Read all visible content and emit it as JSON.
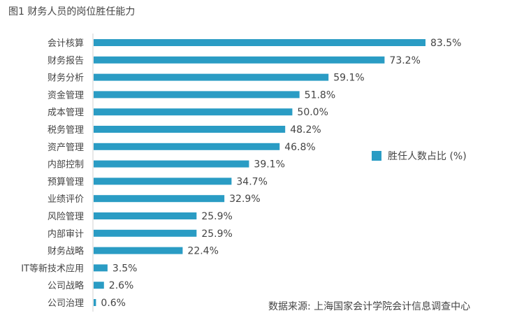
{
  "chart_data": {
    "type": "bar",
    "orientation": "horizontal",
    "title": "图1  财务人员的岗位胜任能力",
    "categories": [
      "会计核算",
      "财务报告",
      "财务分析",
      "资金管理",
      "成本管理",
      "税务管理",
      "资产管理",
      "内部控制",
      "预算管理",
      "业绩评价",
      "风险管理",
      "内部审计",
      "财务战略",
      "IT等新技术应用",
      "公司战略",
      "公司治理"
    ],
    "values": [
      83.5,
      73.2,
      59.1,
      51.8,
      50.0,
      48.2,
      46.8,
      39.1,
      34.7,
      32.9,
      25.9,
      25.9,
      22.4,
      3.5,
      2.6,
      0.6
    ],
    "labels": [
      "83.5%",
      "73.2%",
      "59.1%",
      "51.8%",
      "50.0%",
      "48.2%",
      "46.8%",
      "39.1%",
      "34.7%",
      "32.9%",
      "25.9%",
      "25.9%",
      "22.4%",
      "3.5%",
      "2.6%",
      "0.6%"
    ],
    "legend": {
      "label": "胜任人数占比 (%)",
      "placement": "right"
    },
    "source": "数据来源: 上海国家会计学院会计信息调查中心",
    "xlim": [
      0,
      100
    ],
    "grid": false,
    "color": "#2a9cc4"
  }
}
